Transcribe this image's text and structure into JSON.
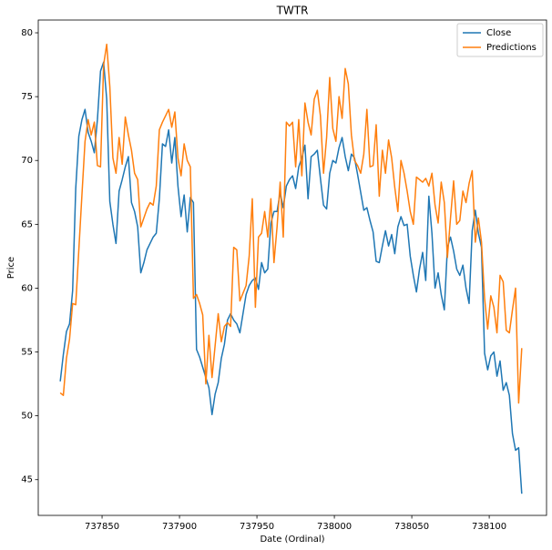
{
  "chart_data": {
    "type": "line",
    "title": "TWTR",
    "xlabel": "Date (Ordinal)",
    "ylabel": "Price",
    "x": [
      737823,
      737825,
      737827,
      737829,
      737831,
      737833,
      737835,
      737837,
      737839,
      737841,
      737843,
      737845,
      737847,
      737849,
      737851,
      737853,
      737855,
      737857,
      737859,
      737861,
      737863,
      737865,
      737867,
      737869,
      737871,
      737873,
      737875,
      737877,
      737879,
      737881,
      737883,
      737885,
      737887,
      737889,
      737891,
      737893,
      737895,
      737897,
      737899,
      737901,
      737903,
      737905,
      737907,
      737909,
      737911,
      737913,
      737915,
      737917,
      737919,
      737921,
      737923,
      737925,
      737927,
      737929,
      737931,
      737933,
      737935,
      737937,
      737939,
      737941,
      737943,
      737945,
      737947,
      737949,
      737951,
      737953,
      737955,
      737957,
      737959,
      737961,
      737963,
      737965,
      737967,
      737969,
      737971,
      737973,
      737975,
      737977,
      737979,
      737981,
      737983,
      737985,
      737987,
      737989,
      737991,
      737993,
      737995,
      737997,
      737999,
      738001,
      738003,
      738005,
      738007,
      738009,
      738011,
      738013,
      738015,
      738017,
      738019,
      738021,
      738023,
      738025,
      738027,
      738029,
      738031,
      738033,
      738035,
      738037,
      738039,
      738041,
      738043,
      738045,
      738047,
      738049,
      738051,
      738053,
      738055,
      738057,
      738059,
      738061,
      738063,
      738065,
      738067,
      738069,
      738071,
      738073,
      738075,
      738077,
      738079,
      738081,
      738083,
      738085,
      738087,
      738089,
      738091,
      738093,
      738095,
      738097,
      738099,
      738101,
      738103,
      738105,
      738107,
      738109,
      738111,
      738113,
      738115,
      738117,
      738119,
      738121
    ],
    "series": [
      {
        "name": "Close",
        "color": "#1f77b4",
        "values": [
          52.7,
          54.8,
          56.6,
          57.2,
          59.8,
          67.8,
          71.9,
          73.2,
          74,
          72.2,
          71.5,
          70.6,
          73.2,
          77,
          77.7,
          74.8,
          66.8,
          65,
          63.5,
          67.6,
          68.5,
          69.5,
          70.3,
          66.7,
          66,
          64.8,
          61.2,
          62,
          63,
          63.5,
          64,
          64.3,
          67,
          71.3,
          71.1,
          72.4,
          69.8,
          71.8,
          68,
          65.6,
          67.3,
          64.4,
          67.1,
          66.7,
          55.2,
          54.6,
          53.8,
          53,
          52.2,
          50.1,
          51.7,
          52.6,
          54.5,
          55.6,
          57.5,
          58,
          57.5,
          57.2,
          56.5,
          58,
          59.5,
          60.2,
          60.6,
          60.8,
          59.9,
          62,
          61.2,
          61.5,
          65.1,
          66,
          66,
          67.5,
          66.3,
          68,
          68.5,
          68.8,
          67.8,
          69.5,
          70.2,
          71.2,
          67,
          70.3,
          70.5,
          70.8,
          68.6,
          66.5,
          66.2,
          69,
          70,
          69.8,
          71,
          71.8,
          70.3,
          69.2,
          70.5,
          70.2,
          68.9,
          67.5,
          66.1,
          66.3,
          65.3,
          64.4,
          62.1,
          62,
          63.3,
          64.5,
          63.3,
          64.2,
          62.7,
          64.8,
          65.6,
          64.9,
          65,
          62.5,
          61,
          59.7,
          61.5,
          62.8,
          60.6,
          67.2,
          64.3,
          60,
          61.2,
          59.5,
          58.3,
          63.2,
          64,
          62.9,
          61.5,
          61,
          61.8,
          60,
          58.8,
          64.5,
          66.1,
          64.3,
          63.2,
          54.9,
          53.6,
          54.7,
          55,
          53.1,
          54.3,
          52,
          52.6,
          51.6,
          48.6,
          47.3,
          47.5,
          43.9
        ]
      },
      {
        "name": "Predictions",
        "color": "#ff7f0e",
        "values": [
          51.8,
          51.6,
          54.5,
          56,
          58.8,
          58.7,
          63,
          67.3,
          71.5,
          73.2,
          72,
          73,
          69.6,
          69.5,
          77.5,
          79.1,
          75.8,
          70.2,
          69,
          71.8,
          69.7,
          73.4,
          72,
          70.8,
          69,
          68.5,
          64.8,
          65.5,
          66.2,
          66.7,
          66.5,
          68,
          72.4,
          73,
          73.5,
          74,
          72.6,
          73.8,
          70.2,
          68.8,
          71.3,
          70,
          69.5,
          59.2,
          59.5,
          58.8,
          57.9,
          52.5,
          56.3,
          53,
          55.5,
          58,
          55.8,
          57,
          57.3,
          57,
          63.2,
          63,
          59,
          59.6,
          60.2,
          62.5,
          67,
          58.5,
          64,
          64.3,
          66,
          64,
          67,
          62,
          64.8,
          68.3,
          64,
          73,
          72.7,
          73,
          69.5,
          73.2,
          68.8,
          74.5,
          73,
          72,
          74.8,
          75.5,
          73.5,
          69,
          71.8,
          76.5,
          72.5,
          71.5,
          75,
          73.3,
          77.2,
          76,
          72,
          70,
          69.6,
          69,
          70.5,
          74,
          69.5,
          69.6,
          72.8,
          67.2,
          70.8,
          69,
          71.6,
          70.2,
          67.9,
          66,
          70,
          69,
          67.6,
          66,
          65,
          68.7,
          68.5,
          68.3,
          68.6,
          68,
          69,
          66.5,
          65.1,
          68.3,
          66.7,
          62.4,
          65.5,
          68.4,
          65,
          65.3,
          67.6,
          66.7,
          68.2,
          69.2,
          63.6,
          65.5,
          63.6,
          59.2,
          56.8,
          59.4,
          58.5,
          56.5,
          61,
          60.5,
          56.7,
          56.5,
          58.3,
          60,
          51,
          55.3
        ]
      }
    ],
    "xlim": [
      737808.8,
      738137
    ],
    "ylim": [
      42.2,
      81
    ],
    "xticks": [
      737850,
      737900,
      737950,
      738000,
      738050,
      738100
    ],
    "yticks": [
      45,
      50,
      55,
      60,
      65,
      70,
      75,
      80
    ],
    "legend": "upper right"
  }
}
